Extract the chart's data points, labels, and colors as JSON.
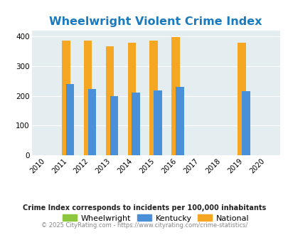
{
  "title": "Wheelwright Violent Crime Index",
  "title_color": "#1a7abf",
  "years": [
    2010,
    2011,
    2012,
    2013,
    2014,
    2015,
    2016,
    2017,
    2018,
    2019,
    2020
  ],
  "wheelwright": [
    null,
    null,
    null,
    null,
    null,
    null,
    null,
    null,
    null,
    null,
    null
  ],
  "kentucky": [
    null,
    240,
    223,
    200,
    211,
    217,
    231,
    null,
    null,
    215,
    null
  ],
  "national": [
    null,
    387,
    387,
    368,
    378,
    385,
    398,
    null,
    null,
    379,
    null
  ],
  "bar_width": 0.38,
  "color_wheelwright": "#8dc63f",
  "color_kentucky": "#4a90d9",
  "color_national": "#f5a623",
  "bg_color": "#e4eef0",
  "ylim": [
    0,
    420
  ],
  "yticks": [
    0,
    100,
    200,
    300,
    400
  ],
  "legend_labels": [
    "Wheelwright",
    "Kentucky",
    "National"
  ],
  "footnote": "Crime Index corresponds to incidents per 100,000 inhabitants",
  "footnote2": "© 2025 CityRating.com - https://www.cityrating.com/crime-statistics/",
  "footnote_color": "#222222",
  "footnote2_color": "#888888",
  "grid_color": "#ffffff",
  "title_fontsize": 11.5
}
